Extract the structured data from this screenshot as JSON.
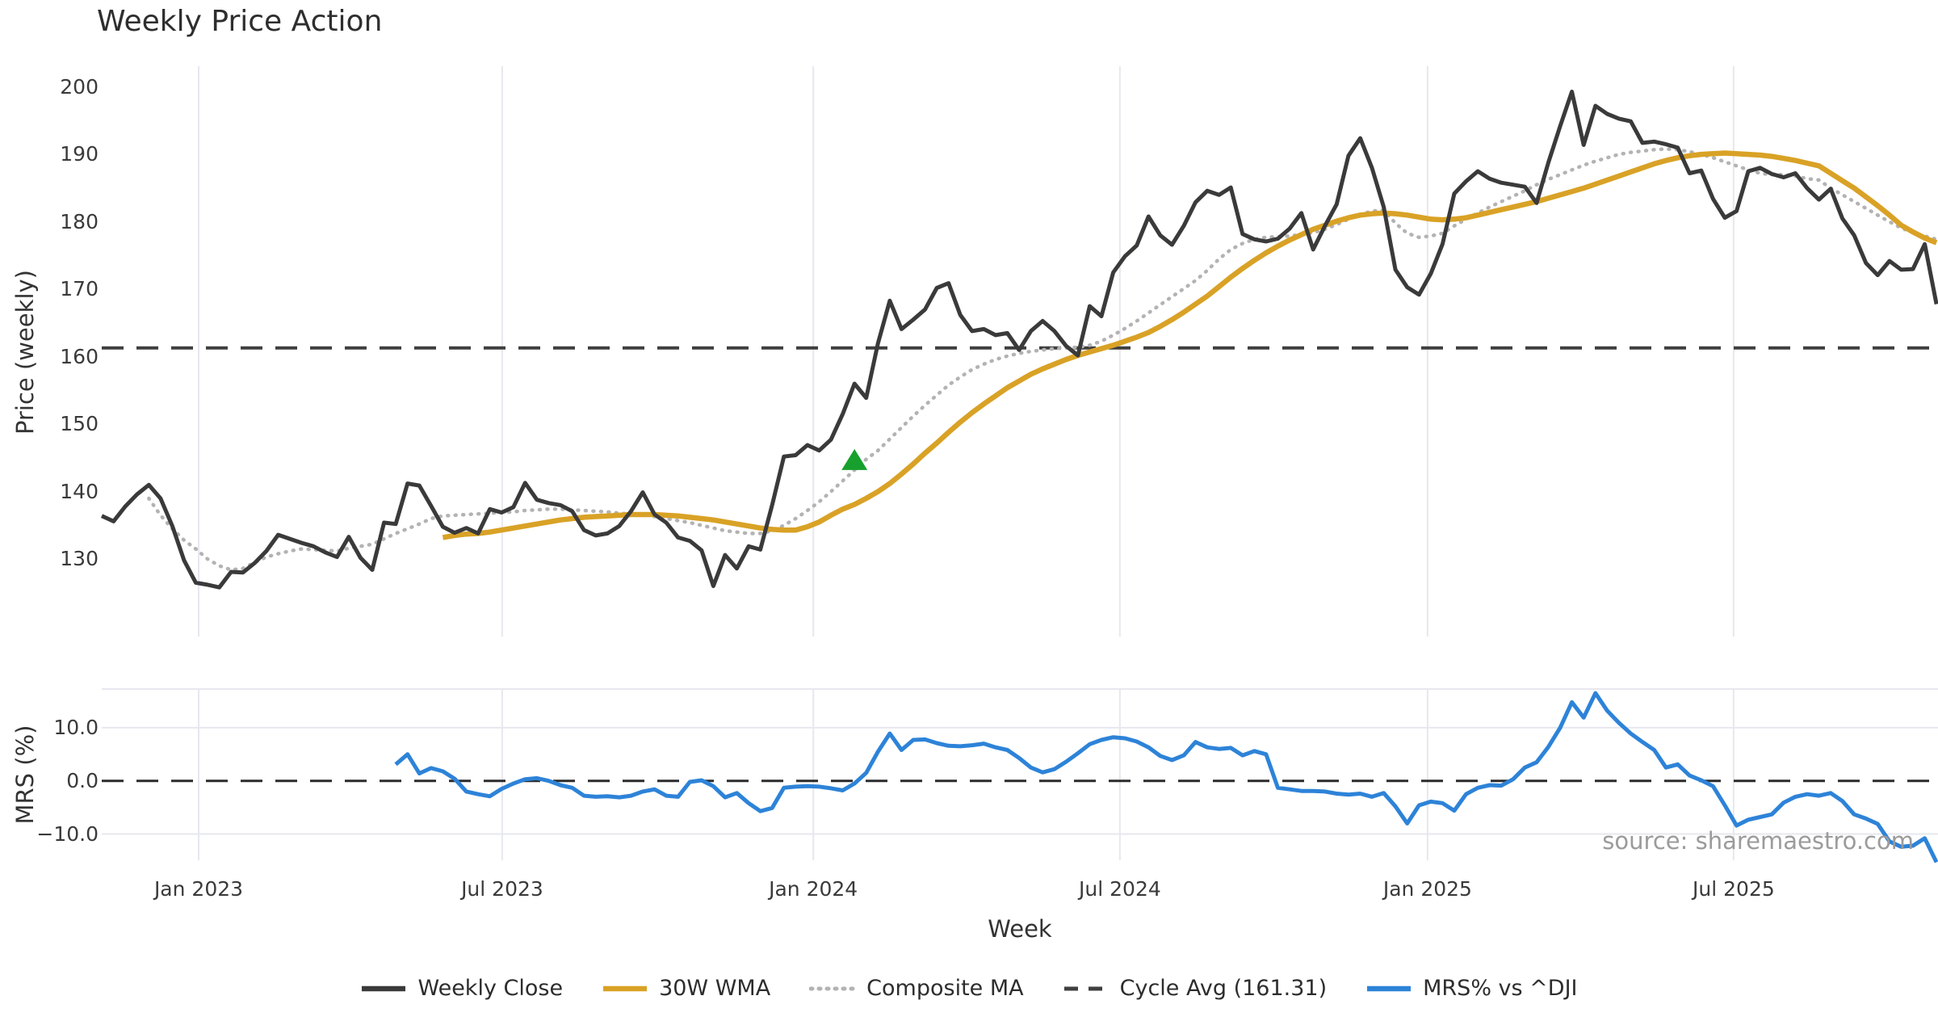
{
  "title": "Weekly Price Action",
  "source_note": "source: sharemaestro.com",
  "axes": {
    "price": {
      "label": "Price (weekly)",
      "ticks": [
        "200",
        "190",
        "180",
        "170",
        "160",
        "150",
        "140",
        "130"
      ]
    },
    "mrs": {
      "label": "MRS (%)",
      "ticks": [
        "10.0",
        "0.0",
        "−10.0"
      ]
    },
    "x": {
      "label": "Week",
      "ticks": [
        "Jan 2023",
        "Jul 2023",
        "Jan 2024",
        "Jul 2024",
        "Jan 2025",
        "Jul 2025"
      ]
    }
  },
  "legend": {
    "items": [
      {
        "label": "Weekly Close",
        "color": "#3a3a3a",
        "style": "solid"
      },
      {
        "label": "30W WMA",
        "color": "#d9a226",
        "style": "solid"
      },
      {
        "label": "Composite MA",
        "color": "#b3b3b3",
        "style": "dotted"
      },
      {
        "label": "Cycle Avg (161.31)",
        "color": "#3f3f3f",
        "style": "dashed"
      },
      {
        "label": "MRS% vs ^DJI",
        "color": "#2d83d8",
        "style": "solid"
      }
    ]
  },
  "colors": {
    "background": "#ffffff",
    "grid": "#e7e7ef",
    "weekly_close": "#3a3a3a",
    "wma30": "#d9a226",
    "composite": "#b3b3b3",
    "cycle_avg": "#3f3f3f",
    "mrs": "#2d83d8",
    "signal_green": "#17a02e",
    "source_text": "#9b9b9b"
  },
  "chart_data": [
    {
      "type": "line",
      "panel": "price",
      "title": "Weekly Price Action",
      "ylabel": "Price (weekly)",
      "ylim": [
        120,
        204
      ],
      "yticks": [
        200,
        190,
        180,
        170,
        160,
        150,
        140,
        130
      ],
      "grid": "vertical-only",
      "x_tick_weeks": [
        8.24,
        34.05,
        60.5,
        86.57,
        112.73,
        138.75
      ],
      "x_tick_labels": [
        "Jan 2023",
        "Jul 2023",
        "Jan 2024",
        "Jul 2024",
        "Jan 2025",
        "Jul 2025"
      ],
      "cycle_avg": 161.31,
      "signal_marker": {
        "shape": "triangle-up",
        "week": 64,
        "value": 144.4,
        "color": "#17a02e"
      },
      "series": [
        {
          "name": "Weekly Close",
          "color": "#3a3a3a",
          "width": 5,
          "start_week": 0,
          "values": [
            136.4,
            135.6,
            137.8,
            139.6,
            141.0,
            139.0,
            134.9,
            129.8,
            126.5,
            126.2,
            125.8,
            128.1,
            128.0,
            129.4,
            131.2,
            133.6,
            133.0,
            132.4,
            131.9,
            131.0,
            130.3,
            133.3,
            130.2,
            128.4,
            135.4,
            135.2,
            141.2,
            140.9,
            137.9,
            134.8,
            133.9,
            134.6,
            133.8,
            137.4,
            136.9,
            137.7,
            141.3,
            138.8,
            138.3,
            138.0,
            137.1,
            134.3,
            133.5,
            133.8,
            134.9,
            137.1,
            139.9,
            136.6,
            135.4,
            133.2,
            132.7,
            131.3,
            126.0,
            130.6,
            128.6,
            131.9,
            131.4,
            138.0,
            145.2,
            145.4,
            146.9,
            146.1,
            147.7,
            151.5,
            156.0,
            153.9,
            162.0,
            168.3,
            164.1,
            165.5,
            167.0,
            170.2,
            170.9,
            166.2,
            163.8,
            164.1,
            163.2,
            163.5,
            161.0,
            163.8,
            165.3,
            163.8,
            161.6,
            160.2,
            167.5,
            166.0,
            172.5,
            174.9,
            176.5,
            180.8,
            178.0,
            176.6,
            179.4,
            182.9,
            184.6,
            184.0,
            185.1,
            178.2,
            177.4,
            177.1,
            177.5,
            179.0,
            181.3,
            175.9,
            179.4,
            182.6,
            189.8,
            192.4,
            188.0,
            182.2,
            172.9,
            170.3,
            169.2,
            172.3,
            176.7,
            184.2,
            186.0,
            187.5,
            186.4,
            185.8,
            185.5,
            185.2,
            182.8,
            188.8,
            194.2,
            199.3,
            191.4,
            197.2,
            196.0,
            195.3,
            194.9,
            191.7,
            191.9,
            191.5,
            191.0,
            187.2,
            187.6,
            183.4,
            180.6,
            181.6,
            187.5,
            188.0,
            187.1,
            186.6,
            187.2,
            185.0,
            183.3,
            184.9,
            180.5,
            178.0,
            173.9,
            172.1,
            174.2,
            172.9,
            173.0,
            176.7,
            167.8
          ]
        },
        {
          "name": "30W WMA",
          "color": "#d9a226",
          "width": 6.5,
          "start_week": 29,
          "values": [
            133.2,
            133.5,
            133.7,
            133.8,
            134.0,
            134.3,
            134.6,
            134.9,
            135.2,
            135.5,
            135.8,
            136.0,
            136.2,
            136.3,
            136.4,
            136.5,
            136.6,
            136.6,
            136.6,
            136.5,
            136.4,
            136.2,
            136.0,
            135.8,
            135.5,
            135.2,
            134.9,
            134.6,
            134.4,
            134.3,
            134.3,
            134.8,
            135.5,
            136.5,
            137.4,
            138.1,
            139.0,
            140.0,
            141.2,
            142.6,
            144.1,
            145.7,
            147.2,
            148.8,
            150.3,
            151.7,
            153.0,
            154.2,
            155.4,
            156.4,
            157.4,
            158.2,
            158.9,
            159.6,
            160.2,
            160.7,
            161.2,
            161.7,
            162.3,
            162.9,
            163.6,
            164.5,
            165.5,
            166.6,
            167.8,
            169.0,
            170.4,
            171.8,
            173.1,
            174.3,
            175.4,
            176.4,
            177.3,
            178.1,
            178.9,
            179.5,
            180.1,
            180.6,
            181.0,
            181.2,
            181.3,
            181.2,
            181.0,
            180.7,
            180.4,
            180.3,
            180.4,
            180.6,
            181.0,
            181.4,
            181.8,
            182.2,
            182.6,
            183.0,
            183.5,
            184.0,
            184.5,
            185.0,
            185.6,
            186.2,
            186.8,
            187.4,
            188.0,
            188.6,
            189.1,
            189.5,
            189.8,
            190.0,
            190.1,
            190.2,
            190.1,
            190.0,
            189.9,
            189.7,
            189.4,
            189.1,
            188.7,
            188.3,
            187.2,
            186.1,
            185.0,
            183.7,
            182.4,
            181.0,
            179.5,
            178.5,
            177.6,
            176.9
          ]
        },
        {
          "name": "Composite MA",
          "color": "#b3b3b3",
          "width": 4.5,
          "dash": "1 8.5",
          "linecap": "round",
          "start_week": 4,
          "values": [
            139.0,
            136.5,
            134.5,
            132.8,
            131.5,
            130.0,
            129.0,
            128.4,
            128.6,
            129.5,
            130.3,
            130.8,
            131.2,
            131.5,
            131.4,
            131.3,
            131.2,
            131.6,
            131.9,
            132.2,
            133.0,
            133.8,
            134.5,
            135.2,
            136.0,
            136.4,
            136.5,
            136.6,
            136.7,
            136.8,
            136.9,
            137.0,
            137.2,
            137.3,
            137.4,
            137.4,
            137.3,
            137.2,
            137.1,
            137.0,
            136.8,
            136.7,
            136.6,
            136.3,
            136.0,
            135.7,
            135.4,
            135.0,
            134.6,
            134.2,
            134.0,
            133.8,
            133.8,
            134.2,
            135.0,
            136.0,
            137.2,
            138.5,
            140.0,
            141.6,
            143.2,
            144.8,
            146.1,
            147.8,
            149.5,
            151.2,
            152.8,
            154.3,
            155.8,
            157.0,
            158.1,
            158.9,
            159.6,
            160.1,
            160.5,
            160.8,
            161.0,
            161.2,
            161.3,
            161.4,
            161.7,
            162.3,
            163.2,
            164.2,
            165.3,
            166.5,
            167.7,
            168.9,
            170.1,
            171.3,
            172.8,
            174.5,
            175.9,
            176.8,
            177.4,
            177.7,
            177.8,
            177.9,
            178.1,
            178.4,
            178.9,
            179.6,
            180.4,
            181.1,
            181.6,
            181.7,
            179.8,
            178.3,
            177.7,
            177.9,
            178.3,
            179.4,
            180.4,
            181.3,
            182.2,
            183.0,
            183.8,
            184.6,
            185.5,
            186.3,
            187.0,
            187.7,
            188.4,
            189.0,
            189.5,
            190.0,
            190.3,
            190.5,
            190.7,
            190.8,
            190.7,
            190.4,
            190.0,
            189.5,
            188.9,
            188.3,
            187.7,
            187.2,
            187.0,
            187.0,
            186.8,
            186.4,
            186.2,
            185.0,
            184.0,
            183.0,
            182.0,
            181.0,
            180.0,
            179.1,
            178.4,
            177.9,
            177.4
          ]
        }
      ]
    },
    {
      "type": "line",
      "panel": "mrs",
      "ylabel": "MRS (%)",
      "ylim": [
        -15.5,
        17.3
      ],
      "yticks": [
        10,
        0,
        -10
      ],
      "zero_line": 0,
      "series": [
        {
          "name": "MRS% vs ^DJI",
          "color": "#2d83d8",
          "width": 5,
          "start_week": 25,
          "values": [
            3.1,
            5.0,
            1.4,
            2.4,
            1.8,
            0.4,
            -2.0,
            -2.5,
            -2.9,
            -1.5,
            -0.5,
            0.3,
            0.5,
            0.0,
            -0.8,
            -1.3,
            -2.8,
            -3.0,
            -2.9,
            -3.1,
            -2.8,
            -2.0,
            -1.6,
            -2.8,
            -3.0,
            -0.2,
            0.1,
            -1.0,
            -3.1,
            -2.3,
            -4.2,
            -5.7,
            -5.1,
            -1.3,
            -1.1,
            -1.0,
            -1.1,
            -1.4,
            -1.8,
            -0.5,
            1.5,
            5.5,
            8.9,
            5.8,
            7.7,
            7.8,
            7.1,
            6.6,
            6.5,
            6.7,
            7.0,
            6.3,
            5.8,
            4.3,
            2.5,
            1.6,
            2.2,
            3.6,
            5.2,
            6.9,
            7.7,
            8.2,
            8.0,
            7.4,
            6.3,
            4.7,
            3.9,
            4.8,
            7.3,
            6.3,
            6.0,
            6.2,
            4.8,
            5.6,
            5.0,
            -1.3,
            -1.6,
            -1.9,
            -1.9,
            -2.0,
            -2.4,
            -2.6,
            -2.4,
            -3.0,
            -2.3,
            -4.8,
            -8.0,
            -4.6,
            -3.9,
            -4.2,
            -5.6,
            -2.5,
            -1.3,
            -0.8,
            -0.9,
            0.3,
            2.5,
            3.5,
            6.4,
            10.0,
            14.8,
            11.9,
            16.5,
            13.2,
            10.9,
            8.9,
            7.3,
            5.8,
            2.5,
            3.1,
            1.0,
            0.1,
            -1.0,
            -4.6,
            -8.4,
            -7.3,
            -6.8,
            -6.3,
            -4.1,
            -3.0,
            -2.5,
            -2.8,
            -2.3,
            -3.8,
            -6.3,
            -7.1,
            -8.1,
            -11.4,
            -12.4,
            -12.2,
            -10.8,
            -15.3
          ]
        }
      ]
    }
  ]
}
